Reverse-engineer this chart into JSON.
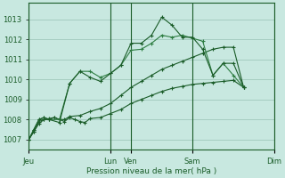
{
  "bg_color": "#c8e8e0",
  "grid_color": "#a0c8bc",
  "line_color_dark": "#1a5c28",
  "line_color_med": "#2e7d42",
  "xlabel": "Pression niveau de la mer( hPa )",
  "ylim": [
    1006.5,
    1013.8
  ],
  "yticks": [
    1007,
    1008,
    1009,
    1010,
    1011,
    1012,
    1013
  ],
  "xtick_labels": [
    "Jeu",
    "Lun",
    "Ven",
    "Sam",
    "Dim"
  ],
  "xtick_pos": [
    0,
    8,
    10,
    16,
    24
  ],
  "vline_pos": [
    0,
    8,
    10,
    16,
    24
  ],
  "xmax": 24,
  "series_a_x": [
    0,
    0.5,
    1,
    1.5,
    2,
    2.5,
    3,
    3.5,
    4,
    4.5,
    5,
    5.5,
    6,
    7,
    8,
    9,
    10,
    11,
    12,
    13,
    14,
    15,
    16,
    17,
    18,
    19,
    20,
    21
  ],
  "series_a_y": [
    1007.0,
    1007.4,
    1007.8,
    1008.0,
    1008.0,
    1008.1,
    1008.0,
    1007.9,
    1008.1,
    1008.0,
    1007.9,
    1007.85,
    1008.05,
    1008.1,
    1008.3,
    1008.5,
    1008.8,
    1009.0,
    1009.2,
    1009.4,
    1009.55,
    1009.65,
    1009.75,
    1009.8,
    1009.85,
    1009.9,
    1009.95,
    1009.6
  ],
  "series_b_x": [
    0,
    0.5,
    1,
    1.5,
    2,
    2.5,
    3,
    3.5,
    4,
    5,
    6,
    7,
    8,
    9,
    10,
    11,
    12,
    13,
    14,
    15,
    16,
    17,
    18,
    19,
    20,
    21
  ],
  "series_b_y": [
    1007.0,
    1007.4,
    1007.9,
    1008.0,
    1008.05,
    1008.1,
    1008.0,
    1008.0,
    1008.15,
    1008.2,
    1008.4,
    1008.55,
    1008.8,
    1009.2,
    1009.6,
    1009.9,
    1010.2,
    1010.5,
    1010.7,
    1010.9,
    1011.1,
    1011.3,
    1011.5,
    1011.6,
    1011.6,
    1009.6
  ],
  "series_c_x": [
    0,
    0.5,
    1,
    1.5,
    2,
    3,
    4,
    5,
    6,
    7,
    8,
    9,
    10,
    11,
    12,
    13,
    14,
    15,
    16,
    17,
    18,
    19,
    20,
    21
  ],
  "series_c_y": [
    1007.0,
    1007.5,
    1008.0,
    1008.1,
    1008.0,
    1008.0,
    1009.8,
    1010.4,
    1010.4,
    1010.1,
    1010.3,
    1010.7,
    1011.45,
    1011.5,
    1011.8,
    1012.2,
    1012.1,
    1012.2,
    1012.05,
    1011.9,
    1010.2,
    1010.8,
    1010.2,
    1009.6
  ],
  "series_d_x": [
    0,
    0.5,
    1,
    1.5,
    2,
    3,
    4,
    5,
    6,
    7,
    8,
    9,
    10,
    11,
    12,
    13,
    14,
    15,
    16,
    17,
    18,
    19,
    20,
    21
  ],
  "series_d_y": [
    1007.0,
    1007.5,
    1008.0,
    1008.1,
    1008.0,
    1007.85,
    1009.8,
    1010.4,
    1010.1,
    1009.9,
    1010.3,
    1010.7,
    1011.8,
    1011.8,
    1012.2,
    1013.1,
    1012.7,
    1012.1,
    1012.1,
    1011.5,
    1010.2,
    1010.8,
    1010.8,
    1009.6
  ]
}
